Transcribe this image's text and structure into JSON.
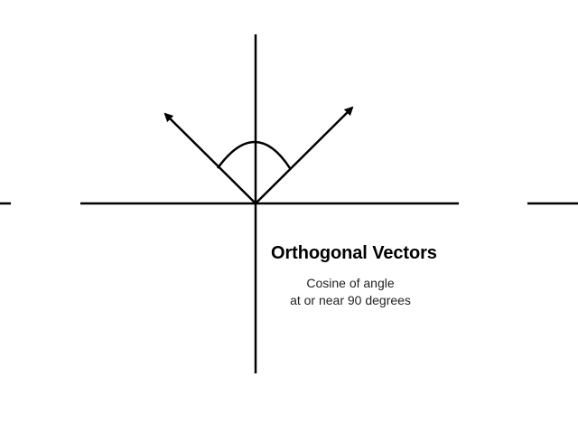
{
  "diagram": {
    "title": "Orthogonal Vectors",
    "caption_lines": [
      "Cosine of angle",
      "at or near 90 degrees"
    ],
    "stroke_color": "#000000",
    "elements": {
      "horizontal_axis": "x-axis",
      "vertical_axis": "y-axis",
      "vector_left": "vector",
      "vector_right": "vector",
      "angle_arc": "angle-arc"
    }
  }
}
